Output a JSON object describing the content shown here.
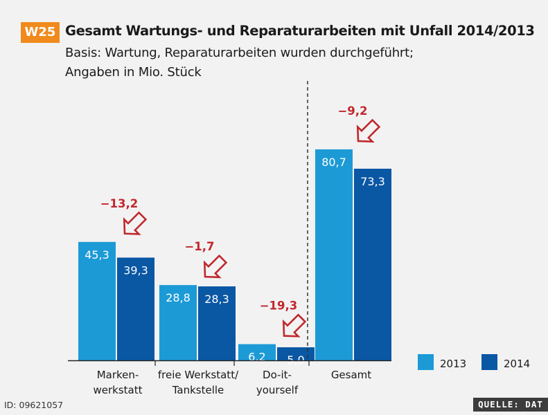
{
  "header": {
    "badge": "W25",
    "title": "Gesamt Wartungs- und Reparaturarbeiten mit Unfall 2014/2013",
    "subtitle_line1": "Basis: Wartung, Reparaturarbeiten wurden durchgeführt;",
    "subtitle_line2": "Angaben in Mio. Stück"
  },
  "footer": {
    "id": "ID: 09621057",
    "source": "QUELLE: DAT"
  },
  "colors": {
    "series_2013": "#1c9ad6",
    "series_2014": "#0a57a4",
    "delta": "#c0282d"
  },
  "chart_data": {
    "type": "bar",
    "title": "Gesamt Wartungs- und Reparaturarbeiten mit Unfall 2014/2013",
    "ylabel": "Mio. Stück",
    "ylim": [
      0,
      90
    ],
    "grid": false,
    "legend_position": "bottom-right",
    "categories": [
      [
        "Marken-",
        "werkstatt"
      ],
      [
        "freie Werkstatt/",
        "Tankstelle"
      ],
      [
        "Do-it-",
        "yourself"
      ],
      [
        "Gesamt"
      ]
    ],
    "series": [
      {
        "name": "2013",
        "values": [
          45.3,
          28.8,
          6.2,
          80.7
        ],
        "labels": [
          "45,3",
          "28,8",
          "6,2",
          "80,7"
        ]
      },
      {
        "name": "2014",
        "values": [
          39.3,
          28.3,
          5.0,
          73.3
        ],
        "labels": [
          "39,3",
          "28,3",
          "5,0",
          "73,3"
        ]
      }
    ],
    "changes": [
      "−13,2",
      "−1,7",
      "−19,3",
      "−9,2"
    ]
  }
}
